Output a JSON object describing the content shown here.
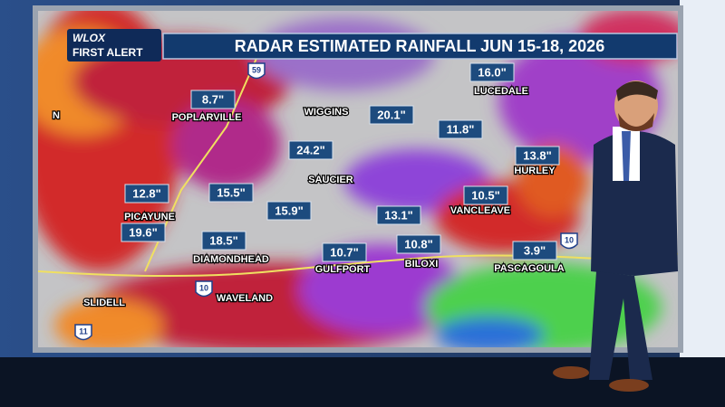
{
  "logo": {
    "station": "WLOX",
    "brand": "FIRST ALERT"
  },
  "title": "RADAR ESTIMATED RAINFALL JUN 15-18, 2026",
  "rainfall": [
    "8.7\"",
    "16.0\"",
    "20.1\"",
    "11.8\"",
    "24.2\"",
    "13.8\"",
    "12.8\"",
    "15.5\"",
    "10.5\"",
    "15.9\"",
    "13.1\"",
    "19.6\"",
    "18.5\"",
    "10.7\"",
    "10.8\"",
    "3.9\""
  ],
  "towns": [
    "POPLARVILLE",
    "WIGGINS",
    "LUCEDALE",
    "SAUCIER",
    "HURLEY",
    "PICAYUNE",
    "VANCLEAVE",
    "DIAMONDHEAD",
    "GULFPORT",
    "BILOXI",
    "PASCAGOULA",
    "SLIDELL",
    "WAVELAND",
    "N"
  ],
  "shields": [
    "59",
    "10",
    "10",
    "11"
  ]
}
